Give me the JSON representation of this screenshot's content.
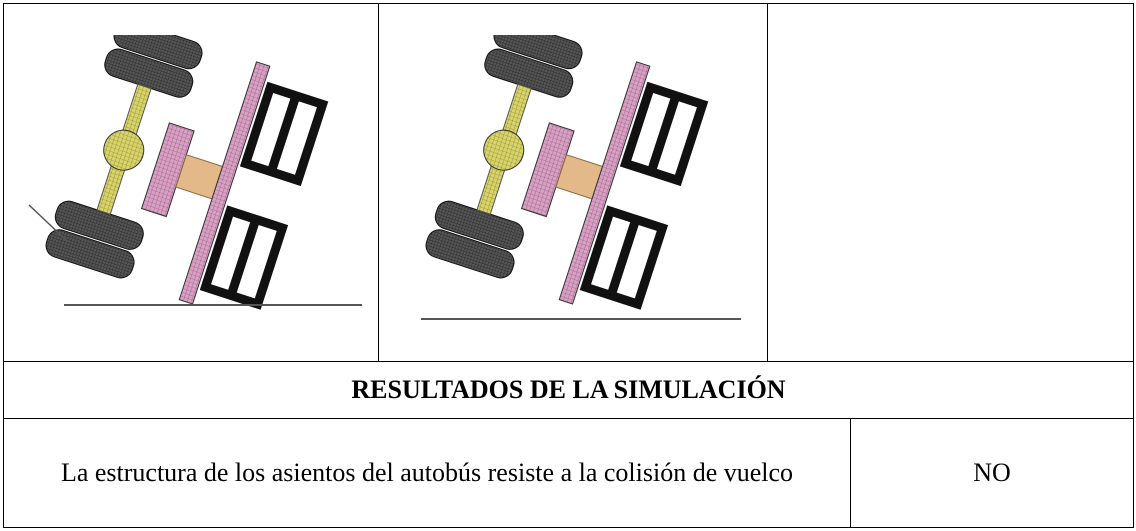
{
  "table": {
    "header": "RESULTADOS DE LA SIMULACIÓN",
    "rows": [
      [
        "La estructura de los asientos del autobús resiste a la colisión de vuelco",
        "NO"
      ]
    ]
  }
}
